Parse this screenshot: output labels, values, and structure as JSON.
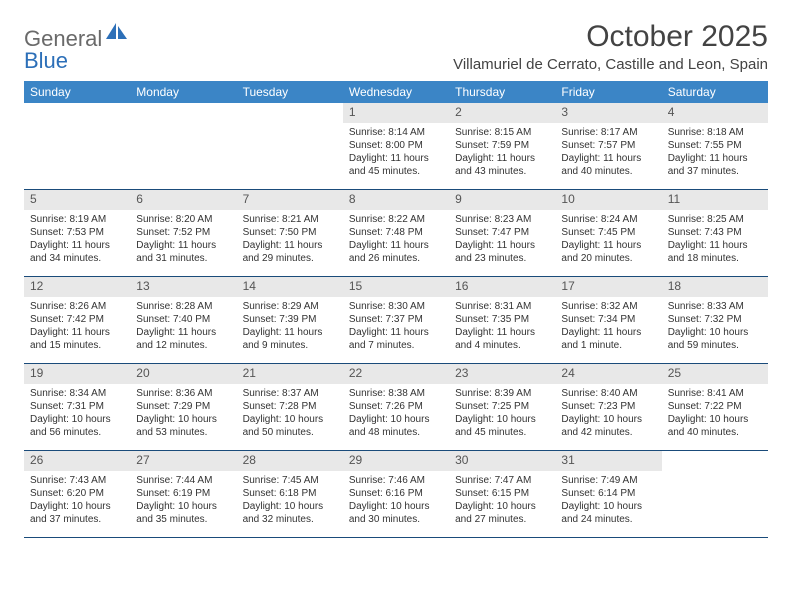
{
  "logo": {
    "text1": "General",
    "text2": "Blue"
  },
  "title": "October 2025",
  "location": "Villamuriel de Cerrato, Castille and Leon, Spain",
  "colors": {
    "header_bg": "#3b85c6",
    "header_text": "#ffffff",
    "daynum_bg": "#e8e8e8",
    "row_border": "#1a4b7a",
    "logo_gray": "#6a6a6a",
    "logo_blue": "#2c6fb8"
  },
  "day_names": [
    "Sunday",
    "Monday",
    "Tuesday",
    "Wednesday",
    "Thursday",
    "Friday",
    "Saturday"
  ],
  "weeks": [
    [
      {
        "n": "",
        "sr": "",
        "ss": "",
        "dl": ""
      },
      {
        "n": "",
        "sr": "",
        "ss": "",
        "dl": ""
      },
      {
        "n": "",
        "sr": "",
        "ss": "",
        "dl": ""
      },
      {
        "n": "1",
        "sr": "Sunrise: 8:14 AM",
        "ss": "Sunset: 8:00 PM",
        "dl": "Daylight: 11 hours and 45 minutes."
      },
      {
        "n": "2",
        "sr": "Sunrise: 8:15 AM",
        "ss": "Sunset: 7:59 PM",
        "dl": "Daylight: 11 hours and 43 minutes."
      },
      {
        "n": "3",
        "sr": "Sunrise: 8:17 AM",
        "ss": "Sunset: 7:57 PM",
        "dl": "Daylight: 11 hours and 40 minutes."
      },
      {
        "n": "4",
        "sr": "Sunrise: 8:18 AM",
        "ss": "Sunset: 7:55 PM",
        "dl": "Daylight: 11 hours and 37 minutes."
      }
    ],
    [
      {
        "n": "5",
        "sr": "Sunrise: 8:19 AM",
        "ss": "Sunset: 7:53 PM",
        "dl": "Daylight: 11 hours and 34 minutes."
      },
      {
        "n": "6",
        "sr": "Sunrise: 8:20 AM",
        "ss": "Sunset: 7:52 PM",
        "dl": "Daylight: 11 hours and 31 minutes."
      },
      {
        "n": "7",
        "sr": "Sunrise: 8:21 AM",
        "ss": "Sunset: 7:50 PM",
        "dl": "Daylight: 11 hours and 29 minutes."
      },
      {
        "n": "8",
        "sr": "Sunrise: 8:22 AM",
        "ss": "Sunset: 7:48 PM",
        "dl": "Daylight: 11 hours and 26 minutes."
      },
      {
        "n": "9",
        "sr": "Sunrise: 8:23 AM",
        "ss": "Sunset: 7:47 PM",
        "dl": "Daylight: 11 hours and 23 minutes."
      },
      {
        "n": "10",
        "sr": "Sunrise: 8:24 AM",
        "ss": "Sunset: 7:45 PM",
        "dl": "Daylight: 11 hours and 20 minutes."
      },
      {
        "n": "11",
        "sr": "Sunrise: 8:25 AM",
        "ss": "Sunset: 7:43 PM",
        "dl": "Daylight: 11 hours and 18 minutes."
      }
    ],
    [
      {
        "n": "12",
        "sr": "Sunrise: 8:26 AM",
        "ss": "Sunset: 7:42 PM",
        "dl": "Daylight: 11 hours and 15 minutes."
      },
      {
        "n": "13",
        "sr": "Sunrise: 8:28 AM",
        "ss": "Sunset: 7:40 PM",
        "dl": "Daylight: 11 hours and 12 minutes."
      },
      {
        "n": "14",
        "sr": "Sunrise: 8:29 AM",
        "ss": "Sunset: 7:39 PM",
        "dl": "Daylight: 11 hours and 9 minutes."
      },
      {
        "n": "15",
        "sr": "Sunrise: 8:30 AM",
        "ss": "Sunset: 7:37 PM",
        "dl": "Daylight: 11 hours and 7 minutes."
      },
      {
        "n": "16",
        "sr": "Sunrise: 8:31 AM",
        "ss": "Sunset: 7:35 PM",
        "dl": "Daylight: 11 hours and 4 minutes."
      },
      {
        "n": "17",
        "sr": "Sunrise: 8:32 AM",
        "ss": "Sunset: 7:34 PM",
        "dl": "Daylight: 11 hours and 1 minute."
      },
      {
        "n": "18",
        "sr": "Sunrise: 8:33 AM",
        "ss": "Sunset: 7:32 PM",
        "dl": "Daylight: 10 hours and 59 minutes."
      }
    ],
    [
      {
        "n": "19",
        "sr": "Sunrise: 8:34 AM",
        "ss": "Sunset: 7:31 PM",
        "dl": "Daylight: 10 hours and 56 minutes."
      },
      {
        "n": "20",
        "sr": "Sunrise: 8:36 AM",
        "ss": "Sunset: 7:29 PM",
        "dl": "Daylight: 10 hours and 53 minutes."
      },
      {
        "n": "21",
        "sr": "Sunrise: 8:37 AM",
        "ss": "Sunset: 7:28 PM",
        "dl": "Daylight: 10 hours and 50 minutes."
      },
      {
        "n": "22",
        "sr": "Sunrise: 8:38 AM",
        "ss": "Sunset: 7:26 PM",
        "dl": "Daylight: 10 hours and 48 minutes."
      },
      {
        "n": "23",
        "sr": "Sunrise: 8:39 AM",
        "ss": "Sunset: 7:25 PM",
        "dl": "Daylight: 10 hours and 45 minutes."
      },
      {
        "n": "24",
        "sr": "Sunrise: 8:40 AM",
        "ss": "Sunset: 7:23 PM",
        "dl": "Daylight: 10 hours and 42 minutes."
      },
      {
        "n": "25",
        "sr": "Sunrise: 8:41 AM",
        "ss": "Sunset: 7:22 PM",
        "dl": "Daylight: 10 hours and 40 minutes."
      }
    ],
    [
      {
        "n": "26",
        "sr": "Sunrise: 7:43 AM",
        "ss": "Sunset: 6:20 PM",
        "dl": "Daylight: 10 hours and 37 minutes."
      },
      {
        "n": "27",
        "sr": "Sunrise: 7:44 AM",
        "ss": "Sunset: 6:19 PM",
        "dl": "Daylight: 10 hours and 35 minutes."
      },
      {
        "n": "28",
        "sr": "Sunrise: 7:45 AM",
        "ss": "Sunset: 6:18 PM",
        "dl": "Daylight: 10 hours and 32 minutes."
      },
      {
        "n": "29",
        "sr": "Sunrise: 7:46 AM",
        "ss": "Sunset: 6:16 PM",
        "dl": "Daylight: 10 hours and 30 minutes."
      },
      {
        "n": "30",
        "sr": "Sunrise: 7:47 AM",
        "ss": "Sunset: 6:15 PM",
        "dl": "Daylight: 10 hours and 27 minutes."
      },
      {
        "n": "31",
        "sr": "Sunrise: 7:49 AM",
        "ss": "Sunset: 6:14 PM",
        "dl": "Daylight: 10 hours and 24 minutes."
      },
      {
        "n": "",
        "sr": "",
        "ss": "",
        "dl": ""
      }
    ]
  ]
}
